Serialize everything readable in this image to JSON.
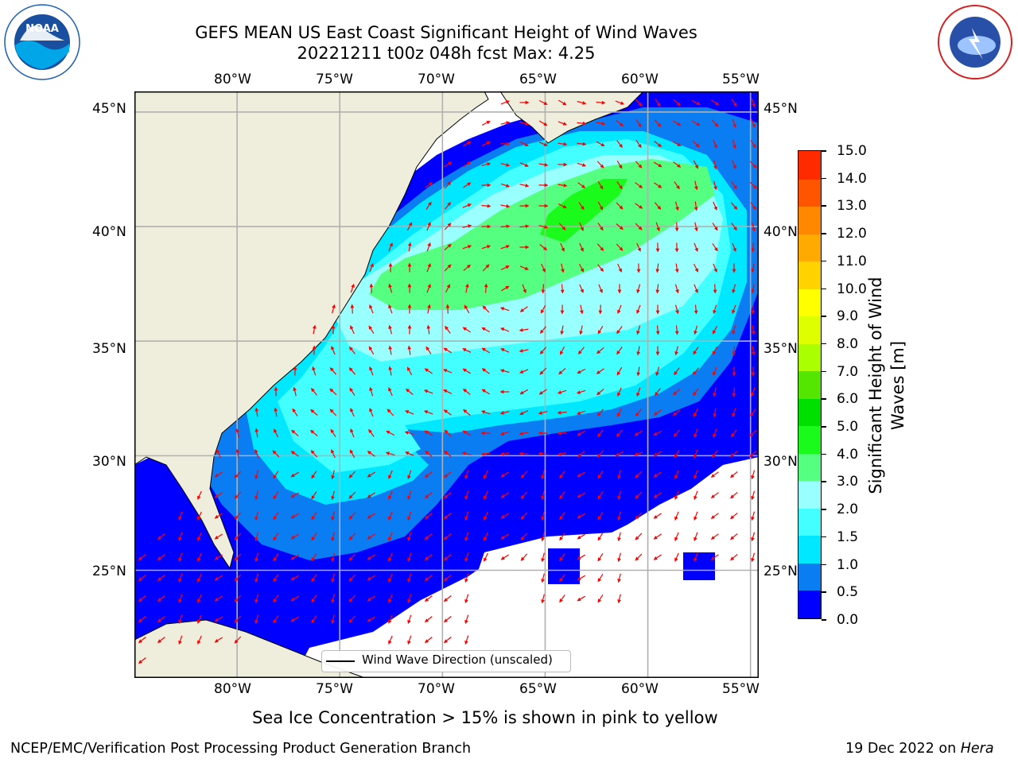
{
  "title": {
    "line1": "GEFS MEAN US East Coast Significant Height of Wind Waves",
    "line2": "20221211 t00z 048h fcst   Max: 4.25"
  },
  "logos": {
    "noaa": {
      "text": "NOAA",
      "ring_text": "NATIONAL OCEANIC AND ATMOSPHERIC ADMINISTRATION · U.S. DEPARTMENT OF COMMERCE",
      "color": "#1a5fb4"
    },
    "nws": {
      "ring_text": "NATIONAL WEATHER SERVICE",
      "color": "#d62020"
    }
  },
  "axes": {
    "lon_ticks": [
      "80°W",
      "75°W",
      "70°W",
      "65°W",
      "60°W",
      "55°W"
    ],
    "lat_ticks": [
      "45°N",
      "40°N",
      "35°N",
      "30°N",
      "25°N"
    ],
    "lon_values": [
      -80,
      -75,
      -70,
      -65,
      -60,
      -55
    ],
    "lat_values": [
      45,
      40,
      35,
      30,
      25
    ],
    "lon_range": [
      -85,
      -54.6
    ],
    "lat_range": [
      20.3,
      45.9
    ],
    "grid": true
  },
  "colorbar": {
    "label": "Significant Height of Wind Waves [m]",
    "ticks": [
      "15.0",
      "14.0",
      "13.0",
      "12.0",
      "11.0",
      "10.0",
      "9.0",
      "8.0",
      "7.0",
      "6.0",
      "5.0",
      "4.0",
      "3.0",
      "2.0",
      "1.5",
      "1.0",
      "0.5",
      "0.0"
    ],
    "colors": [
      "#0000ff",
      "#0a7df2",
      "#00e8ff",
      "#44ffff",
      "#99ffff",
      "#55ff7f",
      "#1bfb1b",
      "#00e000",
      "#55e600",
      "#aaff00",
      "#ddff00",
      "#ffff00",
      "#ffd200",
      "#ffaa00",
      "#ff8800",
      "#ff5500",
      "#ff2a00"
    ]
  },
  "legend": {
    "entry": "Wind Wave Direction (unscaled)"
  },
  "note": "Sea Ice Concentration > 15% is shown in pink to yellow",
  "footer": {
    "left": "NCEP/EMC/Verification Post Processing Product Generation Branch",
    "right_date": "19 Dec 2022 on ",
    "right_machine": "Hera"
  },
  "map_colors": {
    "land": "#efeedc",
    "arrow": "#ff0000",
    "grid": "#b0b0b0"
  }
}
